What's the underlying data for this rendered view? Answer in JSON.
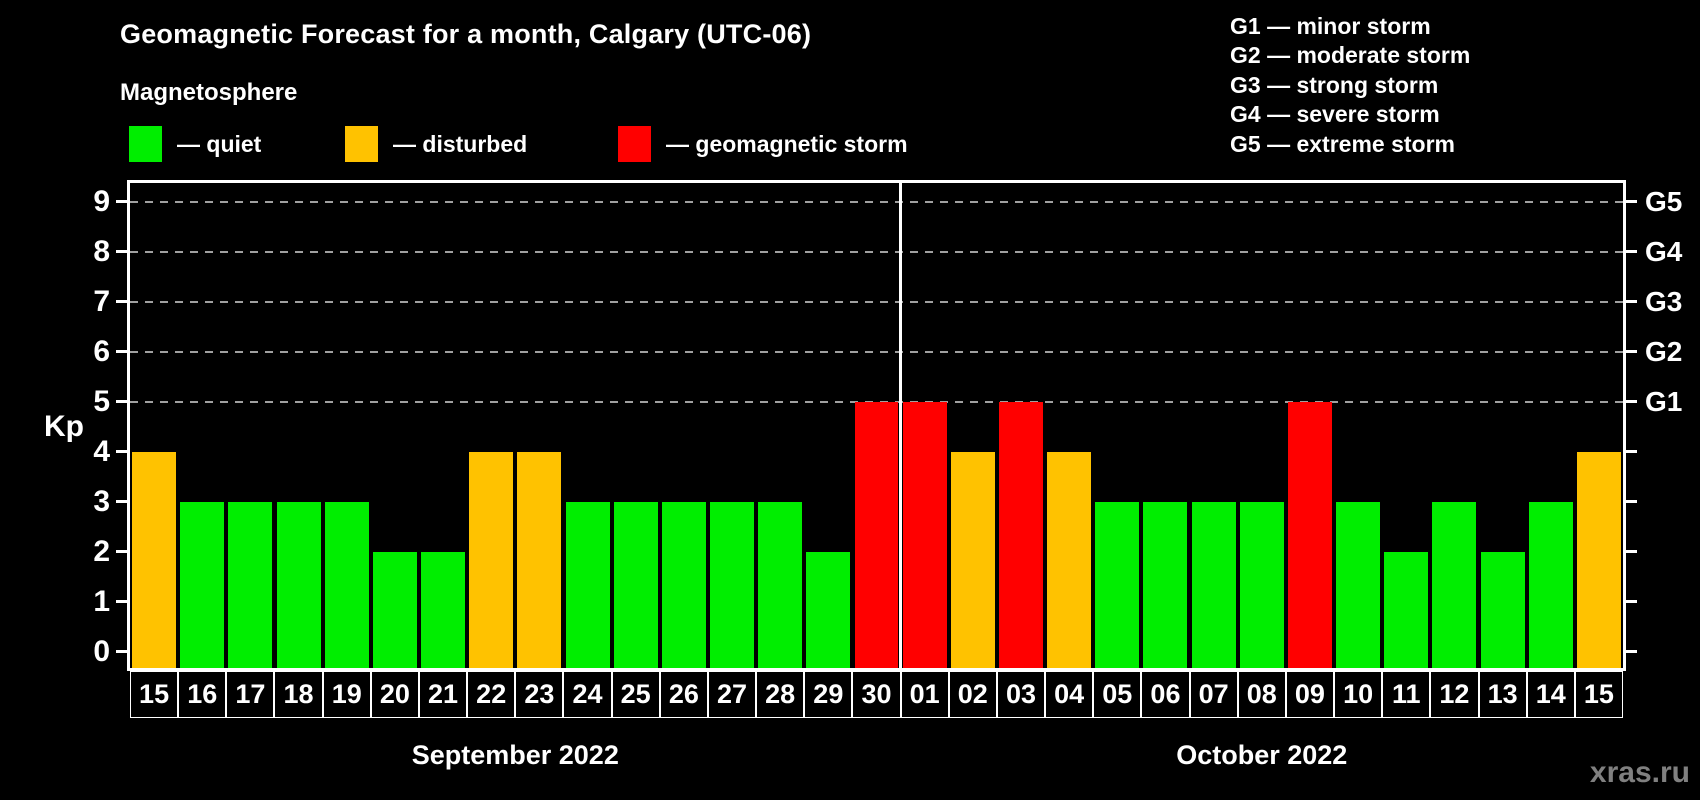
{
  "title": "Geomagnetic Forecast for a month, Calgary (UTC-06)",
  "subtitle": "Magnetosphere",
  "status_legend": [
    {
      "key": "quiet",
      "label": "— quiet",
      "color": "#00ee00"
    },
    {
      "key": "disturbed",
      "label": "— disturbed",
      "color": "#ffc200"
    },
    {
      "key": "storm",
      "label": "— geomagnetic storm",
      "color": "#ff0000"
    }
  ],
  "g_scale_legend": [
    "G1 — minor storm",
    "G2 — moderate storm",
    "G3 — strong storm",
    "G4 — severe storm",
    "G5 — extreme storm"
  ],
  "watermark": "xras.ru",
  "colors": {
    "background": "#000000",
    "text": "#ffffff",
    "axis": "#ffffff",
    "gridline": "#a0a0a0",
    "quiet": "#00ee00",
    "disturbed": "#ffc200",
    "storm": "#ff0000",
    "watermark": "#808080"
  },
  "chart_data": {
    "type": "bar",
    "title": "Geomagnetic Forecast for a month, Calgary (UTC-06)",
    "ylabel": "Kp",
    "xlabel": "",
    "ylim": [
      0,
      9
    ],
    "y_ticks": [
      0,
      1,
      2,
      3,
      4,
      5,
      6,
      7,
      8,
      9
    ],
    "gridlines_at": [
      5,
      6,
      7,
      8,
      9
    ],
    "grid": "horizontal dashed at storm levels only",
    "legend_position": "top-left and top-right",
    "right_axis_labels": [
      {
        "value": 5,
        "label": "G1"
      },
      {
        "value": 6,
        "label": "G2"
      },
      {
        "value": 7,
        "label": "G3"
      },
      {
        "value": 8,
        "label": "G4"
      },
      {
        "value": 9,
        "label": "G5"
      }
    ],
    "sections": [
      {
        "label": "September 2022",
        "days": [
          {
            "day": "15",
            "kp": 4,
            "status": "disturbed"
          },
          {
            "day": "16",
            "kp": 3,
            "status": "quiet"
          },
          {
            "day": "17",
            "kp": 3,
            "status": "quiet"
          },
          {
            "day": "18",
            "kp": 3,
            "status": "quiet"
          },
          {
            "day": "19",
            "kp": 3,
            "status": "quiet"
          },
          {
            "day": "20",
            "kp": 2,
            "status": "quiet"
          },
          {
            "day": "21",
            "kp": 2,
            "status": "quiet"
          },
          {
            "day": "22",
            "kp": 4,
            "status": "disturbed"
          },
          {
            "day": "23",
            "kp": 4,
            "status": "disturbed"
          },
          {
            "day": "24",
            "kp": 3,
            "status": "quiet"
          },
          {
            "day": "25",
            "kp": 3,
            "status": "quiet"
          },
          {
            "day": "26",
            "kp": 3,
            "status": "quiet"
          },
          {
            "day": "27",
            "kp": 3,
            "status": "quiet"
          },
          {
            "day": "28",
            "kp": 3,
            "status": "quiet"
          },
          {
            "day": "29",
            "kp": 2,
            "status": "quiet"
          },
          {
            "day": "30",
            "kp": 5,
            "status": "storm"
          }
        ]
      },
      {
        "label": "October 2022",
        "days": [
          {
            "day": "01",
            "kp": 5,
            "status": "storm"
          },
          {
            "day": "02",
            "kp": 4,
            "status": "disturbed"
          },
          {
            "day": "03",
            "kp": 5,
            "status": "storm"
          },
          {
            "day": "04",
            "kp": 4,
            "status": "disturbed"
          },
          {
            "day": "05",
            "kp": 3,
            "status": "quiet"
          },
          {
            "day": "06",
            "kp": 3,
            "status": "quiet"
          },
          {
            "day": "07",
            "kp": 3,
            "status": "quiet"
          },
          {
            "day": "08",
            "kp": 3,
            "status": "quiet"
          },
          {
            "day": "09",
            "kp": 5,
            "status": "storm"
          },
          {
            "day": "10",
            "kp": 3,
            "status": "quiet"
          },
          {
            "day": "11",
            "kp": 2,
            "status": "quiet"
          },
          {
            "day": "12",
            "kp": 3,
            "status": "quiet"
          },
          {
            "day": "13",
            "kp": 2,
            "status": "quiet"
          },
          {
            "day": "14",
            "kp": 3,
            "status": "quiet"
          },
          {
            "day": "15",
            "kp": 4,
            "status": "disturbed"
          }
        ]
      }
    ]
  }
}
